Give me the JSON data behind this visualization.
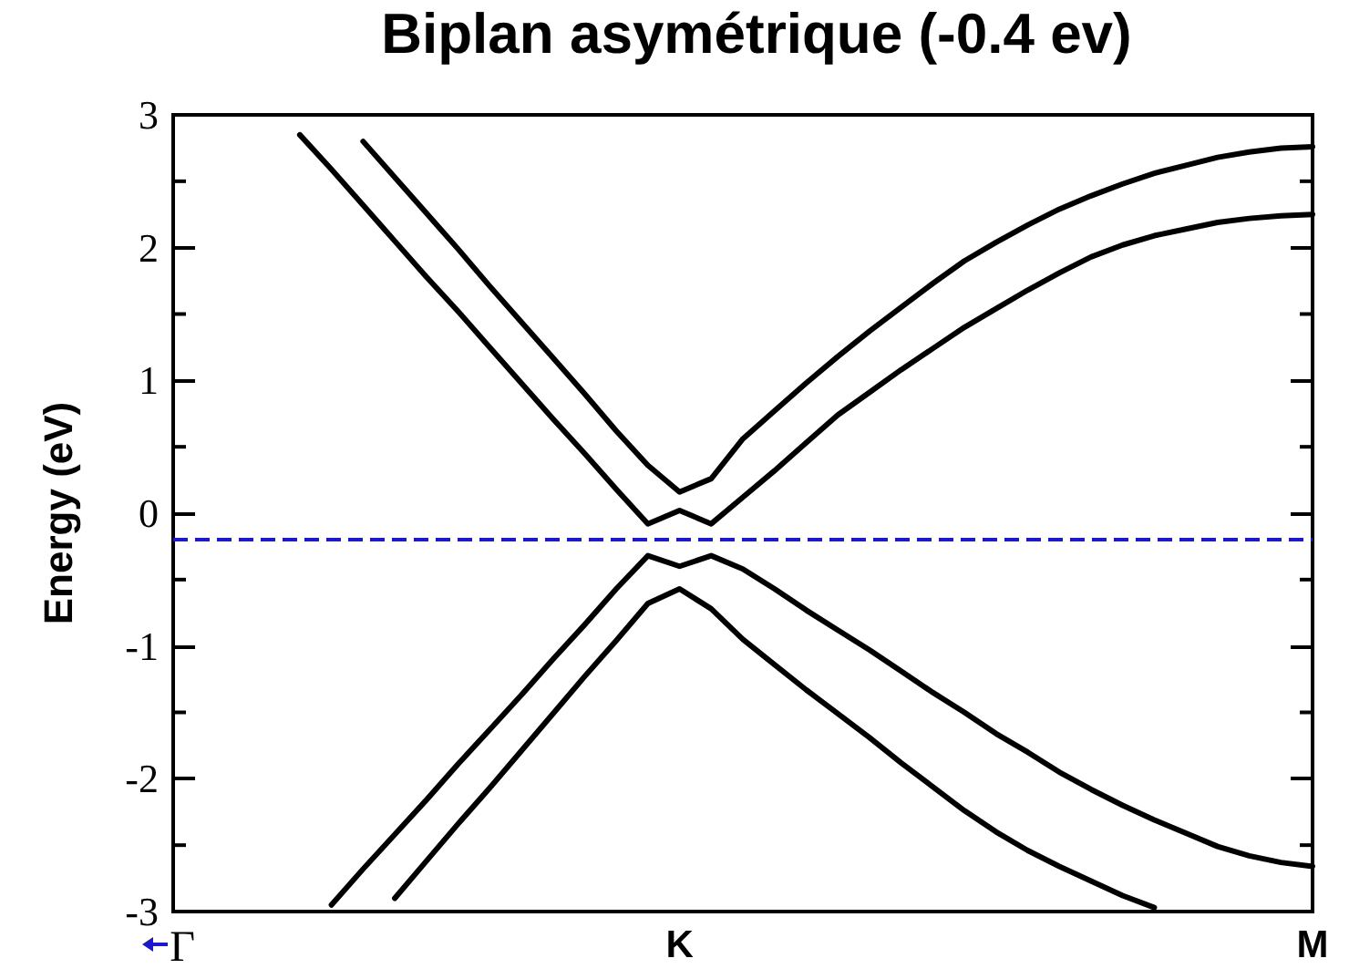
{
  "chart_data": {
    "type": "line",
    "title": "Biplan asymétrique (-0.4 ev)",
    "ylabel": "Energy (eV)",
    "categories": [
      "Γ",
      null,
      null,
      null,
      null,
      null,
      null,
      null,
      null,
      null,
      null,
      null,
      null,
      null,
      null,
      null,
      "K",
      null,
      null,
      null,
      null,
      null,
      null,
      null,
      null,
      null,
      null,
      null,
      null,
      null,
      null,
      null,
      null,
      null,
      null,
      null,
      "M"
    ],
    "ylim": [
      -3,
      3
    ],
    "yticks": [
      -3,
      -2,
      -1,
      0,
      1,
      2,
      3
    ],
    "marker": "none",
    "line_style": "solid",
    "ref_lines": [
      {
        "axis": "y",
        "value": -0.2,
        "color": "#1a1acc",
        "line_style": "dashed"
      }
    ],
    "series": [
      {
        "color": "#000000",
        "values": [
          null,
          null,
          null,
          null,
          null,
          null,
          2.8,
          2.53,
          2.26,
          1.99,
          1.71,
          1.44,
          1.17,
          0.9,
          0.62,
          0.36,
          0.16,
          0.26,
          0.56,
          0.77,
          0.98,
          1.18,
          1.37,
          1.55,
          1.73,
          1.9,
          2.04,
          2.17,
          2.29,
          2.39,
          2.48,
          2.56,
          2.62,
          2.68,
          2.72,
          2.75,
          2.76
        ]
      },
      {
        "color": "#000000",
        "values": [
          null,
          null,
          null,
          null,
          2.85,
          2.59,
          2.32,
          2.05,
          1.78,
          1.52,
          1.25,
          0.98,
          0.71,
          0.45,
          0.18,
          -0.08,
          0.02,
          -0.08,
          0.12,
          0.32,
          0.53,
          0.74,
          0.91,
          1.08,
          1.24,
          1.4,
          1.54,
          1.68,
          1.81,
          1.93,
          2.02,
          2.09,
          2.14,
          2.19,
          2.22,
          2.24,
          2.25
        ]
      },
      {
        "color": "#000000",
        "values": [
          null,
          null,
          null,
          null,
          null,
          -2.95,
          -2.68,
          -2.42,
          -2.16,
          -1.89,
          -1.63,
          -1.37,
          -1.1,
          -0.84,
          -0.57,
          -0.32,
          -0.4,
          -0.32,
          -0.42,
          -0.57,
          -0.73,
          -0.88,
          -1.03,
          -1.19,
          -1.35,
          -1.5,
          -1.66,
          -1.8,
          -1.95,
          -2.08,
          -2.2,
          -2.31,
          -2.41,
          -2.51,
          -2.58,
          -2.63,
          -2.66
        ]
      },
      {
        "color": "#000000",
        "values": [
          null,
          null,
          null,
          null,
          null,
          null,
          null,
          -2.9,
          -2.62,
          -2.34,
          -2.07,
          -1.79,
          -1.51,
          -1.23,
          -0.96,
          -0.68,
          -0.57,
          -0.72,
          -0.95,
          -1.14,
          -1.33,
          -1.51,
          -1.69,
          -1.88,
          -2.06,
          -2.24,
          -2.4,
          -2.54,
          -2.66,
          -2.77,
          -2.88,
          -2.97,
          null,
          null,
          null,
          null,
          null
        ]
      }
    ]
  }
}
